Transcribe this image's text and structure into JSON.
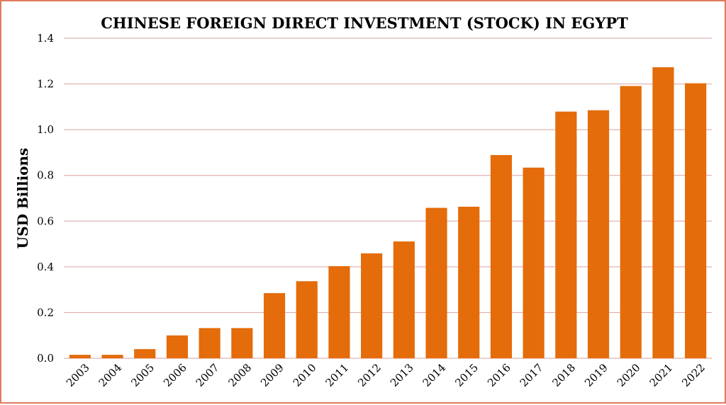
{
  "chart_data": {
    "type": "bar",
    "title": "CHINESE FOREIGN DIRECT INVESTMENT (STOCK) IN EGYPT",
    "xlabel": "",
    "ylabel": "USD Billions",
    "ylim": [
      0,
      1.4
    ],
    "yticks": [
      "0.0",
      "0.2",
      "0.4",
      "0.6",
      "0.8",
      "1.0",
      "1.2",
      "1.4"
    ],
    "grid": true,
    "bar_color": "#e46c0a",
    "categories": [
      "2003",
      "2004",
      "2005",
      "2006",
      "2007",
      "2008",
      "2009",
      "2010",
      "2011",
      "2012",
      "2013",
      "2014",
      "2015",
      "2016",
      "2017",
      "2018",
      "2019",
      "2020",
      "2021",
      "2022"
    ],
    "values": [
      0.015,
      0.015,
      0.04,
      0.1,
      0.132,
      0.132,
      0.285,
      0.337,
      0.403,
      0.459,
      0.511,
      0.658,
      0.663,
      0.889,
      0.834,
      1.079,
      1.085,
      1.191,
      1.273,
      1.203
    ]
  }
}
